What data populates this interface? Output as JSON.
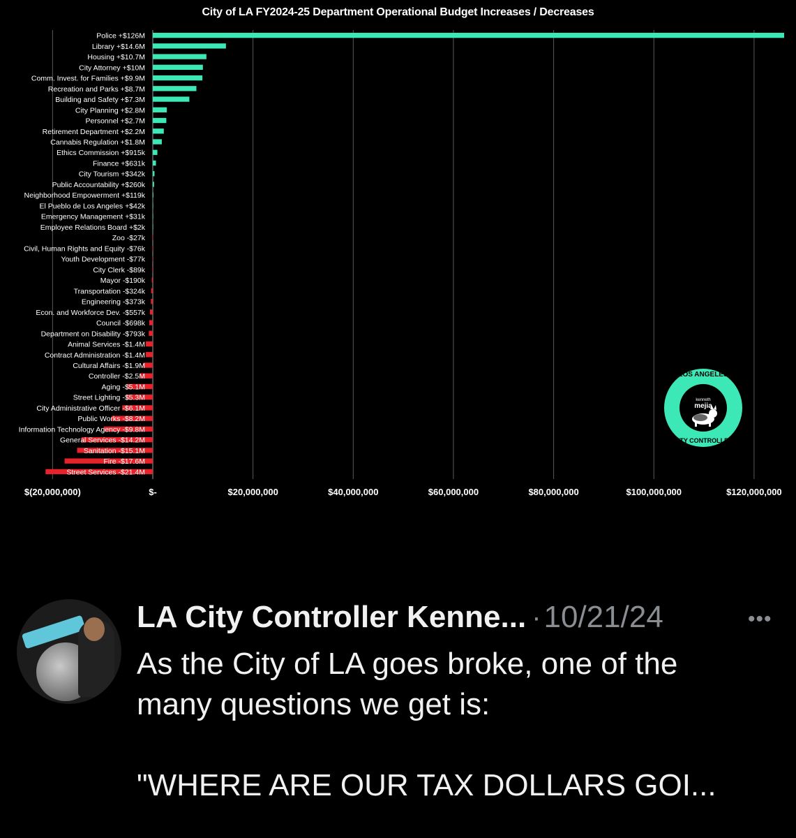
{
  "chart_data": {
    "type": "bar",
    "orientation": "horizontal",
    "title": "City of LA FY2024-25 Department Operational Budget Increases / Decreases",
    "xlim": [
      -20000000,
      126000000
    ],
    "xticks": [
      -20000000,
      0,
      20000000,
      40000000,
      60000000,
      80000000,
      100000000,
      120000000
    ],
    "xtick_labels": [
      "$(20,000,000)",
      "$-",
      "$20,000,000",
      "$40,000,000",
      "$60,000,000",
      "$80,000,000",
      "$100,000,000",
      "$120,000,000"
    ],
    "grid": true,
    "colors": {
      "positive": "#3de8b7",
      "negative": "#e8222a"
    },
    "categories": [
      "Police +$126M",
      "Library +$14.6M",
      "Housing +$10.7M",
      "City Attorney +$10M",
      "Comm. Invest. for Families +$9.9M",
      "Recreation and Parks +$8.7M",
      "Building and Safety +$7.3M",
      "City Planning +$2.8M",
      "Personnel +$2.7M",
      "Retirement Department +$2.2M",
      "Cannabis Regulation +$1.8M",
      "Ethics Commission +$915k",
      "Finance +$631k",
      "City Tourism +$342k",
      "Public Accountability +$260k",
      "Neighborhood Empowerment +$119k",
      "El Pueblo de Los Angeles +$42k",
      "Emergency Management +$31k",
      "Employee Relations Board +$2k",
      "Zoo -$27k",
      "Civil, Human Rights and Equity -$76k",
      "Youth Development -$77k",
      "City Clerk -$89k",
      "Mayor -$190k",
      "Transportation -$324k",
      "Engineering -$373k",
      "Econ. and Workforce Dev. -$557k",
      "Council -$698k",
      "Department on Disability -$793k",
      "Animal Services -$1.4M",
      "Contract Administration -$1.4M",
      "Cultural Affairs -$1.9M",
      "Controller -$2.5M",
      "Aging -$5.1M",
      "Street Lighting -$5.3M",
      "City Administrative Officer -$6.1M",
      "Public Works -$8.2M",
      "Information Technology Agency -$9.8M",
      "General Services -$14.2M",
      "Sanitation -$15.1M",
      "Fire -$17.6M",
      "Street Services -$21.4M"
    ],
    "values": [
      126000000,
      14600000,
      10700000,
      10000000,
      9900000,
      8700000,
      7300000,
      2800000,
      2700000,
      2200000,
      1800000,
      915000,
      631000,
      342000,
      260000,
      119000,
      42000,
      31000,
      2000,
      -27000,
      -76000,
      -77000,
      -89000,
      -190000,
      -324000,
      -373000,
      -557000,
      -698000,
      -793000,
      -1400000,
      -1400000,
      -1900000,
      -2500000,
      -5100000,
      -5300000,
      -6100000,
      -8200000,
      -9800000,
      -14200000,
      -15100000,
      -17600000,
      -21400000
    ]
  },
  "seal": {
    "top_text": "LOS ANGELES",
    "bottom_text": "CITY CONTROLLER",
    "name_small": "kenneth",
    "name": "mejia",
    "icon": "corgi-icon"
  },
  "tweet": {
    "author": "LA City Controller Kenne...",
    "separator": "·",
    "date": "10/21/24",
    "more_icon": "more-icon",
    "body_lines": [
      "As the City of LA goes broke, one of the",
      "many questions we get is:",
      "\"WHERE ARE OUR TAX DOLLARS GOI..."
    ]
  }
}
